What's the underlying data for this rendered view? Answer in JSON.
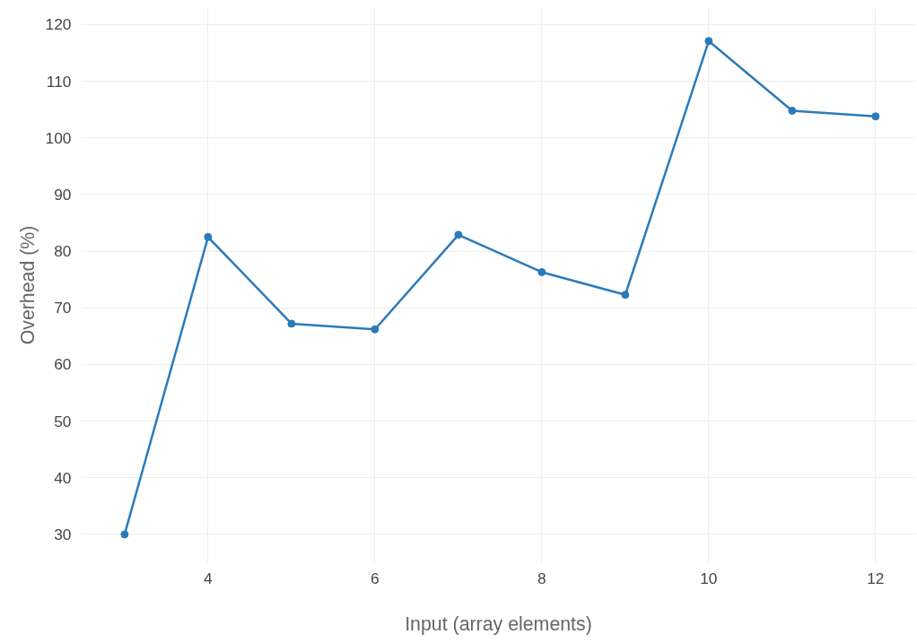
{
  "chart_data": {
    "type": "line",
    "xlabel": "Input (array elements)",
    "ylabel": "Overhead (%)",
    "x": [
      3,
      4,
      5,
      6,
      7,
      8,
      9,
      10,
      11,
      12
    ],
    "series": [
      {
        "color": "#2b7bba",
        "values": [
          30,
          82.5,
          67.2,
          66.2,
          82.9,
          76.3,
          72.3,
          117.1,
          104.8,
          103.8
        ]
      }
    ],
    "xlim": [
      2.48,
      12.48
    ],
    "ylim": [
      25,
      123
    ],
    "xticks": [
      4,
      6,
      8,
      10,
      12
    ],
    "yticks": [
      30,
      40,
      50,
      60,
      70,
      80,
      90,
      100,
      110,
      120
    ],
    "grid": true,
    "marker": "circle",
    "line_style": "solid"
  }
}
